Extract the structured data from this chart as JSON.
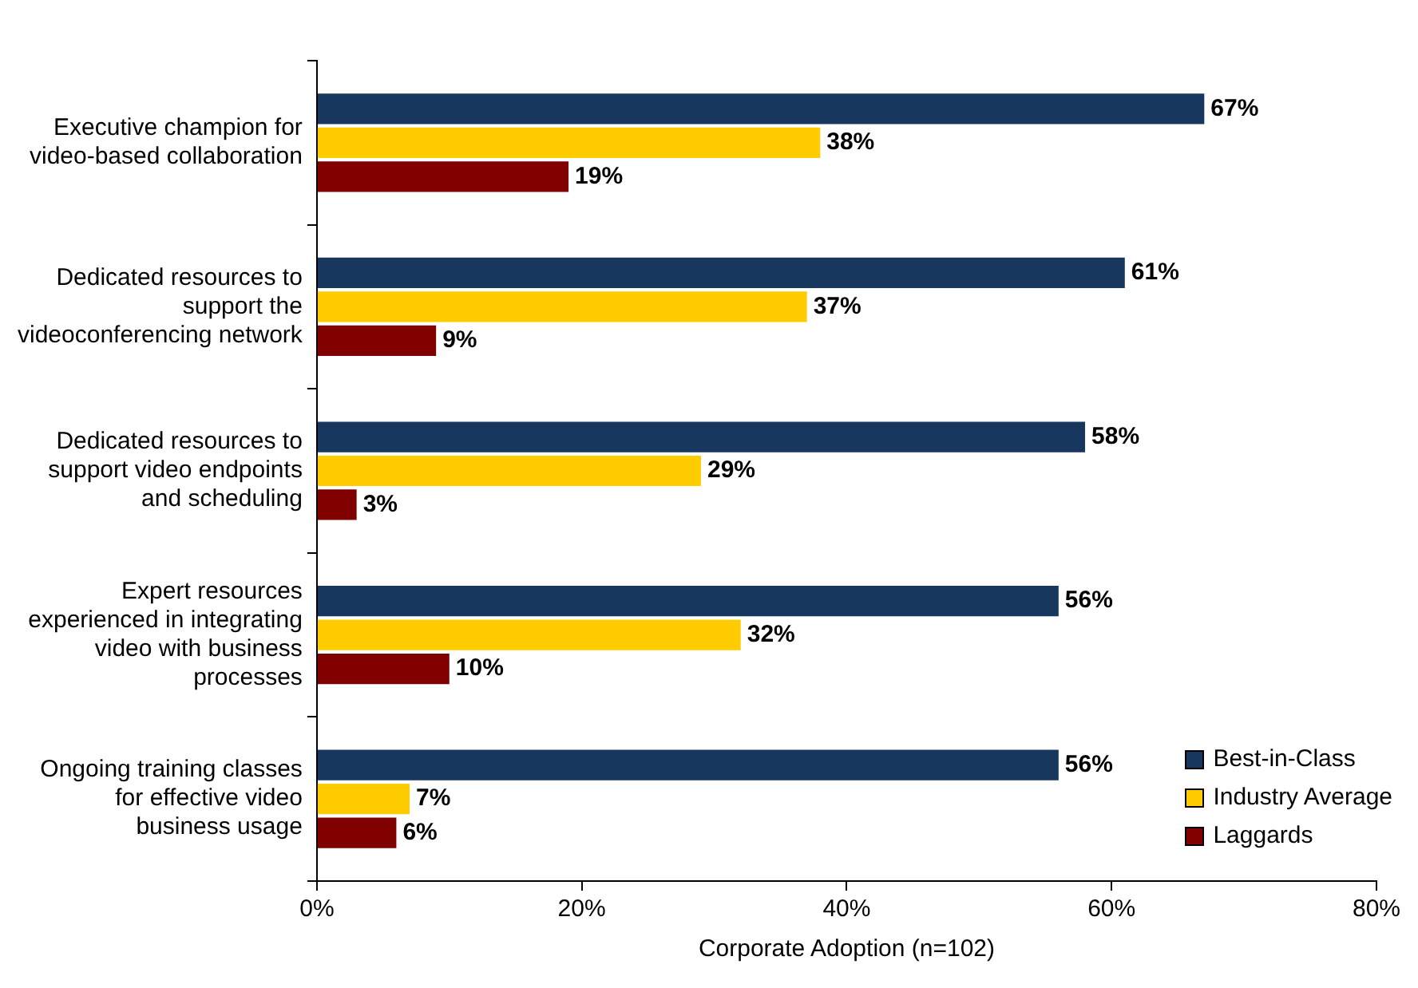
{
  "chart_data": {
    "type": "bar",
    "orientation": "horizontal",
    "xlabel": "Corporate Adoption (n=102)",
    "categories": [
      "Executive champion for video-based collaboration",
      "Dedicated resources to support the videoconferencing network",
      "Dedicated resources to support video endpoints and scheduling",
      "Expert resources experienced in integrating video with business processes",
      "Ongoing training classes for effective video business usage"
    ],
    "series": [
      {
        "name": "Best-in-Class",
        "color": "#17375e",
        "values": [
          67,
          61,
          58,
          56,
          56
        ],
        "value_labels": [
          "67%",
          "61%",
          "58%",
          "56%",
          "56%"
        ]
      },
      {
        "name": "Industry Average",
        "color": "#ffcc00",
        "values": [
          38,
          37,
          29,
          32,
          7
        ],
        "value_labels": [
          "38%",
          "37%",
          "29%",
          "32%",
          "7%"
        ]
      },
      {
        "name": "Laggards",
        "color": "#800000",
        "values": [
          19,
          9,
          3,
          10,
          6
        ],
        "value_labels": [
          "19%",
          "9%",
          "3%",
          "10%",
          "6%"
        ]
      }
    ],
    "xlim": [
      0,
      80
    ],
    "xticks": [
      {
        "value": 0,
        "label": "0%"
      },
      {
        "value": 20,
        "label": "20%"
      },
      {
        "value": 40,
        "label": "40%"
      },
      {
        "value": 60,
        "label": "60%"
      },
      {
        "value": 80,
        "label": "80%"
      }
    ],
    "grid": false,
    "legend": "bottom right"
  }
}
